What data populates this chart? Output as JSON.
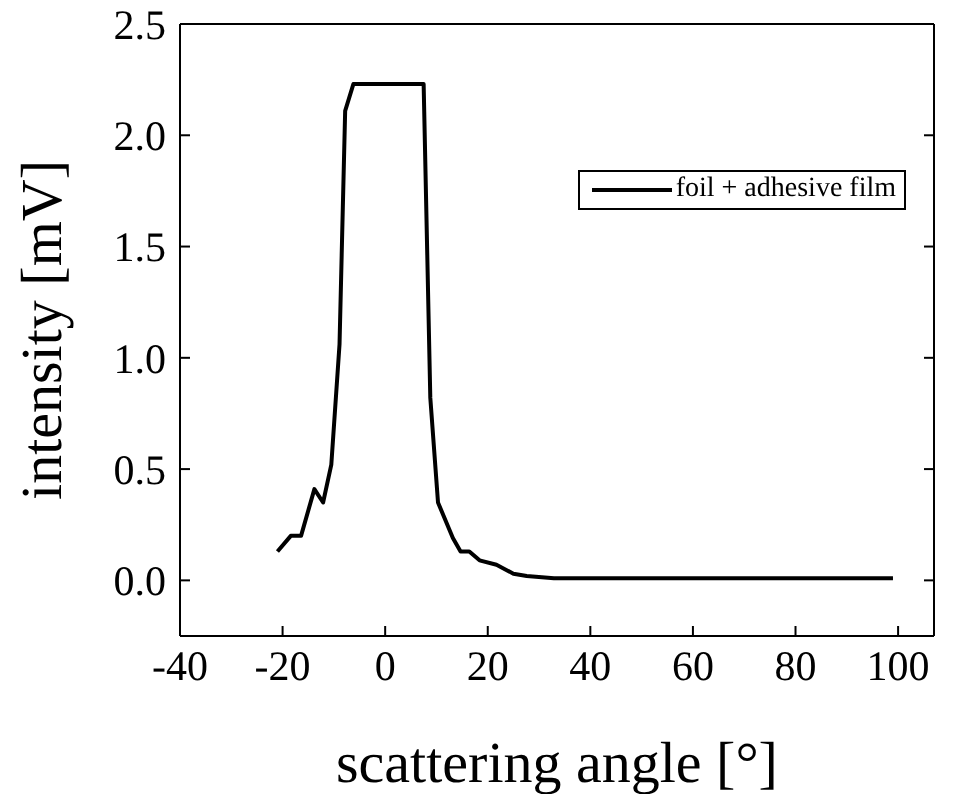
{
  "chart_data": {
    "type": "line",
    "xlabel": "scattering angle [°]",
    "ylabel": "intensity [mV]",
    "xlim": [
      -40,
      107
    ],
    "xticks": [
      -40,
      -20,
      0,
      20,
      40,
      60,
      80,
      100
    ],
    "ylim": [
      -0.25,
      2.5
    ],
    "yticks": [
      {
        "value": 0,
        "label": "0.0"
      },
      {
        "value": 0.5,
        "label": "0.5"
      },
      {
        "value": 1,
        "label": "1.0"
      },
      {
        "value": 1.5,
        "label": "1.5"
      },
      {
        "value": 2,
        "label": "2.0"
      },
      {
        "value": 2.5,
        "label": "2.5"
      }
    ],
    "legend": "top right",
    "marker": "none",
    "line_style": "solid",
    "series": [
      {
        "name": "foil + adhesive film",
        "color": "#000000",
        "x": [
          -21,
          -18.4,
          -16.4,
          -13.8,
          -12.1,
          -10.5,
          -8.9,
          -7.8,
          -6.2,
          7.5,
          8.8,
          10.3,
          13.2,
          14.7,
          16.4,
          18.4,
          21.7,
          25,
          27.6,
          32.9,
          39.5,
          52.6,
          65.8,
          79,
          92,
          99
        ],
        "values": [
          0.13,
          0.2,
          0.2,
          0.41,
          0.35,
          0.52,
          1.06,
          2.11,
          2.23,
          2.23,
          0.82,
          0.35,
          0.19,
          0.13,
          0.13,
          0.09,
          0.07,
          0.03,
          0.02,
          0.01,
          0.01,
          0.01,
          0.01,
          0.01,
          0.01,
          0.01
        ]
      }
    ]
  }
}
